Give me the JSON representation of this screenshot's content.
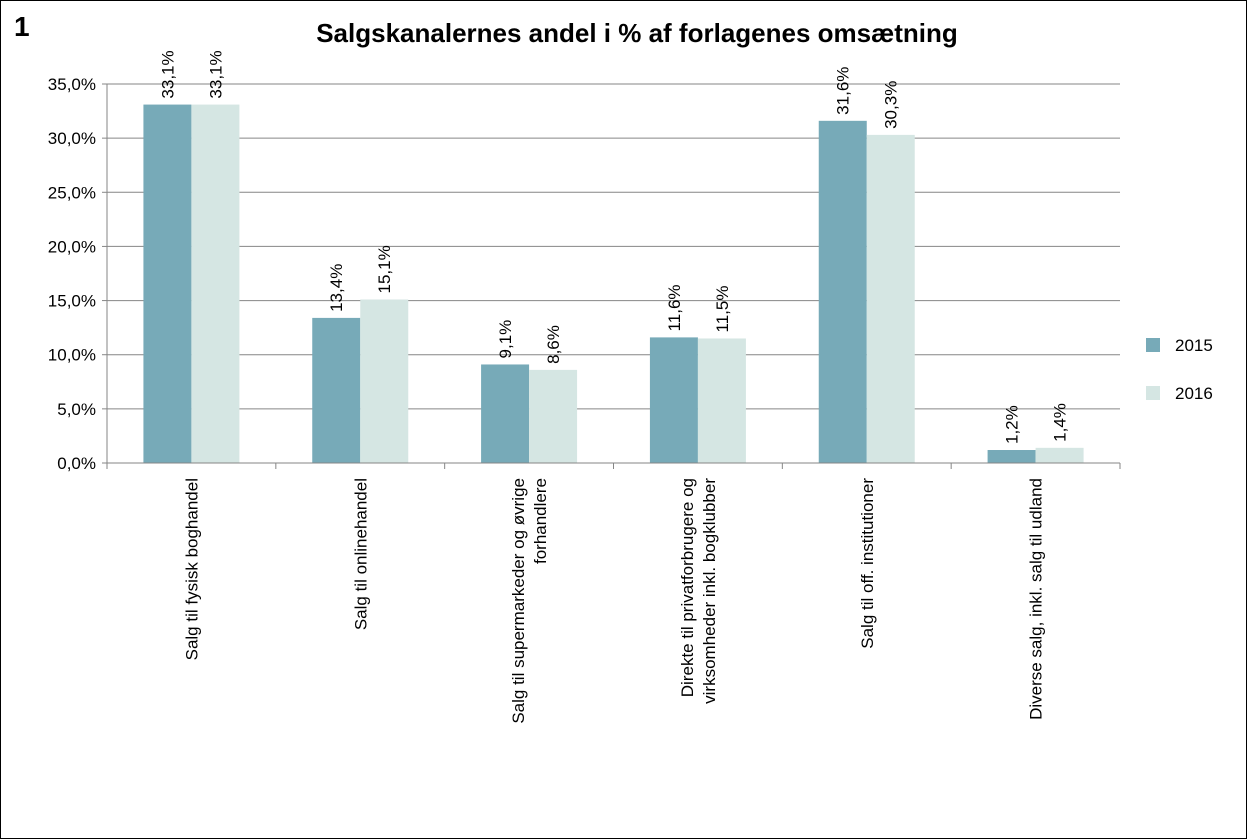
{
  "chart_data": {
    "type": "bar",
    "panel_label": "1",
    "title": "Salgskanalernes andel i % af forlagenes omsætning",
    "categories": [
      "Salg til fysisk boghandel",
      "Salg til onlinehandel",
      "Salg til supermarkeder og øvrige\nforhandlere",
      "Direkte til privatforbrugere og\nvirksomheder inkl. bogklubber",
      "Salg til off. institutioner",
      "Diverse salg, inkl. salg til udland"
    ],
    "series": [
      {
        "name": "2015",
        "color": "#77aab8",
        "values": [
          33.1,
          13.4,
          9.1,
          11.6,
          31.6,
          1.2
        ],
        "value_labels": [
          "33,1%",
          "13,4%",
          "9,1%",
          "11,6%",
          "31,6%",
          "1,2%"
        ]
      },
      {
        "name": "2016",
        "color": "#d5e6e3",
        "values": [
          33.1,
          15.1,
          8.6,
          11.5,
          30.3,
          1.4
        ],
        "value_labels": [
          "33,1%",
          "15,1%",
          "8,6%",
          "11,5%",
          "30,3%",
          "1,4%"
        ]
      }
    ],
    "ylim": [
      0,
      35
    ],
    "yticks": [
      {
        "value": 0,
        "label": "0,0%"
      },
      {
        "value": 5,
        "label": "5,0%"
      },
      {
        "value": 10,
        "label": "10,0%"
      },
      {
        "value": 15,
        "label": "15,0%"
      },
      {
        "value": 20,
        "label": "20,0%"
      },
      {
        "value": 25,
        "label": "25,0%"
      },
      {
        "value": 30,
        "label": "30,0%"
      },
      {
        "value": 35,
        "label": "35,0%"
      }
    ],
    "grid": true,
    "legend": "right"
  }
}
